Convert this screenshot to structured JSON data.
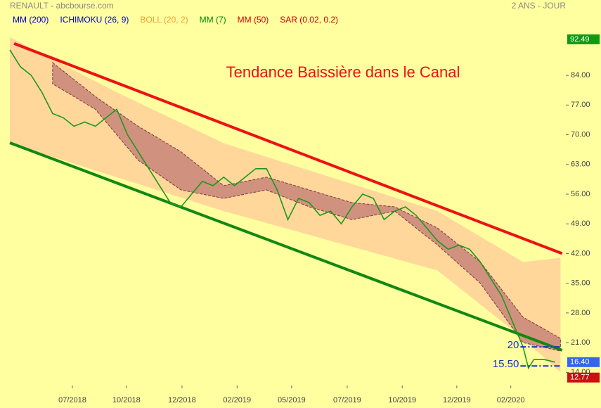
{
  "chart_data": {
    "type": "line",
    "header": {
      "left": "RENAULT - abcbourse.com",
      "right": "2 ANS - JOUR"
    },
    "indicators": [
      {
        "name": "MM (200)",
        "color": "#0000cc"
      },
      {
        "name": "ICHIMOKU (26, 9)",
        "color": "#0000cc"
      },
      {
        "name": "BOLL (20, 2)",
        "color": "#f0a030"
      },
      {
        "name": "MM (7)",
        "color": "#008800"
      },
      {
        "name": "MM (50)",
        "color": "#dd0000"
      },
      {
        "name": "SAR (0.02, 0.2)",
        "color": "#cc0000"
      }
    ],
    "annotation": {
      "text": "Tendance Baissière dans le Canal",
      "color": "#ee1111"
    },
    "xlim": [
      0,
      104
    ],
    "xticks": [
      {
        "value": 11.7,
        "label": "07/2018"
      },
      {
        "value": 21.8,
        "label": "10/2018"
      },
      {
        "value": 32.2,
        "label": "12/2018"
      },
      {
        "value": 42.5,
        "label": "02/2019"
      },
      {
        "value": 52.7,
        "label": "05/2019"
      },
      {
        "value": 63.1,
        "label": "07/2019"
      },
      {
        "value": 73.4,
        "label": "10/2019"
      },
      {
        "value": 83.6,
        "label": "12/2019"
      },
      {
        "value": 93.7,
        "label": "02/2020"
      }
    ],
    "ylim": [
      10.9,
      93.8
    ],
    "yticks": [
      {
        "value": 14,
        "label": "14.00"
      },
      {
        "value": 21,
        "label": "21.00"
      },
      {
        "value": 28,
        "label": "28.00"
      },
      {
        "value": 35,
        "label": "35.00"
      },
      {
        "value": 42,
        "label": "42.00"
      },
      {
        "value": 49,
        "label": "49.00"
      },
      {
        "value": 56,
        "label": "56.00"
      },
      {
        "value": 63,
        "label": "63.00"
      },
      {
        "value": 70,
        "label": "70.00"
      },
      {
        "value": 77,
        "label": "77.00"
      },
      {
        "value": 84,
        "label": "84.00"
      }
    ],
    "price": {
      "color": "#1a9a1a",
      "x": [
        0,
        2,
        4,
        6,
        8,
        10,
        12,
        14,
        16,
        18,
        20,
        22,
        24,
        26,
        28,
        30,
        32,
        34,
        36,
        38,
        40,
        42,
        44,
        46,
        48,
        50,
        52,
        54,
        56,
        58,
        60,
        62,
        64,
        66,
        68,
        70,
        72,
        74,
        76,
        78,
        80,
        82,
        84,
        86,
        88,
        90,
        92,
        94,
        96,
        97,
        98,
        100,
        102
      ],
      "values": [
        90,
        86,
        84,
        80,
        75,
        74,
        72,
        73,
        72,
        74,
        76,
        70,
        66,
        62,
        58,
        54,
        53,
        56,
        59,
        58,
        60,
        58,
        60,
        62,
        62,
        57,
        50,
        55,
        54,
        51,
        52,
        49,
        53,
        56,
        55,
        50,
        52,
        53,
        51,
        48,
        45,
        43,
        44,
        43,
        40,
        36,
        32,
        26,
        20,
        15,
        17,
        17,
        16.4
      ]
    },
    "bollinger": {
      "color": "#ffd79a",
      "x": [
        0,
        20,
        40,
        60,
        80,
        96,
        103
      ],
      "upper": [
        93,
        80,
        68,
        60,
        52,
        40,
        41
      ],
      "lower": [
        68,
        60,
        52,
        45,
        38,
        22,
        14
      ]
    },
    "ichimoku": {
      "color": "#c8867a",
      "x": [
        8,
        16,
        24,
        32,
        40,
        48,
        56,
        64,
        72,
        80,
        88,
        96,
        103
      ],
      "a": [
        87,
        79,
        72,
        66,
        58,
        60,
        57,
        54,
        53,
        48,
        40,
        27,
        22
      ],
      "b": [
        82,
        76,
        64,
        57,
        55,
        57,
        53,
        50,
        52,
        44,
        35,
        21,
        19
      ]
    },
    "channel": [
      {
        "color": "#ee1111",
        "x": [
          0.8,
          103.3
        ],
        "y": [
          91.5,
          42
        ]
      },
      {
        "color": "#118811",
        "x": [
          0,
          103.3
        ],
        "y": [
          68.1,
          19.2
        ]
      }
    ],
    "levels": [
      {
        "value": 20,
        "label": "20",
        "x": [
          95.5,
          103
        ]
      },
      {
        "value": 15.5,
        "label": "15.50",
        "x": [
          95.5,
          103
        ]
      }
    ],
    "price_tags": [
      {
        "value": 92.49,
        "label": "92.49",
        "color": "#119911"
      },
      {
        "value": 16.4,
        "label": "16.40",
        "color": "#3366ee"
      },
      {
        "value": 12.77,
        "label": "12.77",
        "color": "#cc1111"
      }
    ]
  }
}
